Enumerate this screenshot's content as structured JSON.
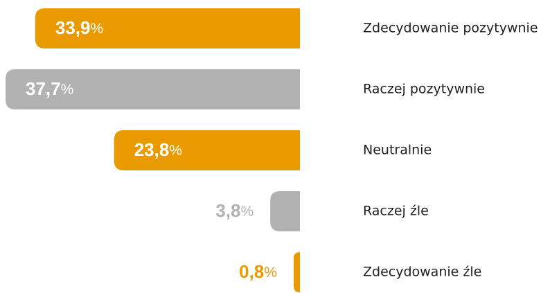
{
  "chart_data": {
    "type": "hbar",
    "categories": [
      "Zdecydowanie pozytywnie",
      "Raczej pozytywnie",
      "Neutralnie",
      "Raczej źle",
      "Zdecydowanie źle"
    ],
    "values": [
      33.9,
      37.7,
      23.8,
      3.8,
      0.8
    ],
    "value_labels": [
      "33,9%",
      "37,7%",
      "23,8%",
      "3,8%",
      "0,8%"
    ],
    "colors": [
      "#e89a00",
      "#b2b2b2",
      "#e89a00",
      "#b2b2b2",
      "#e89a00"
    ]
  }
}
